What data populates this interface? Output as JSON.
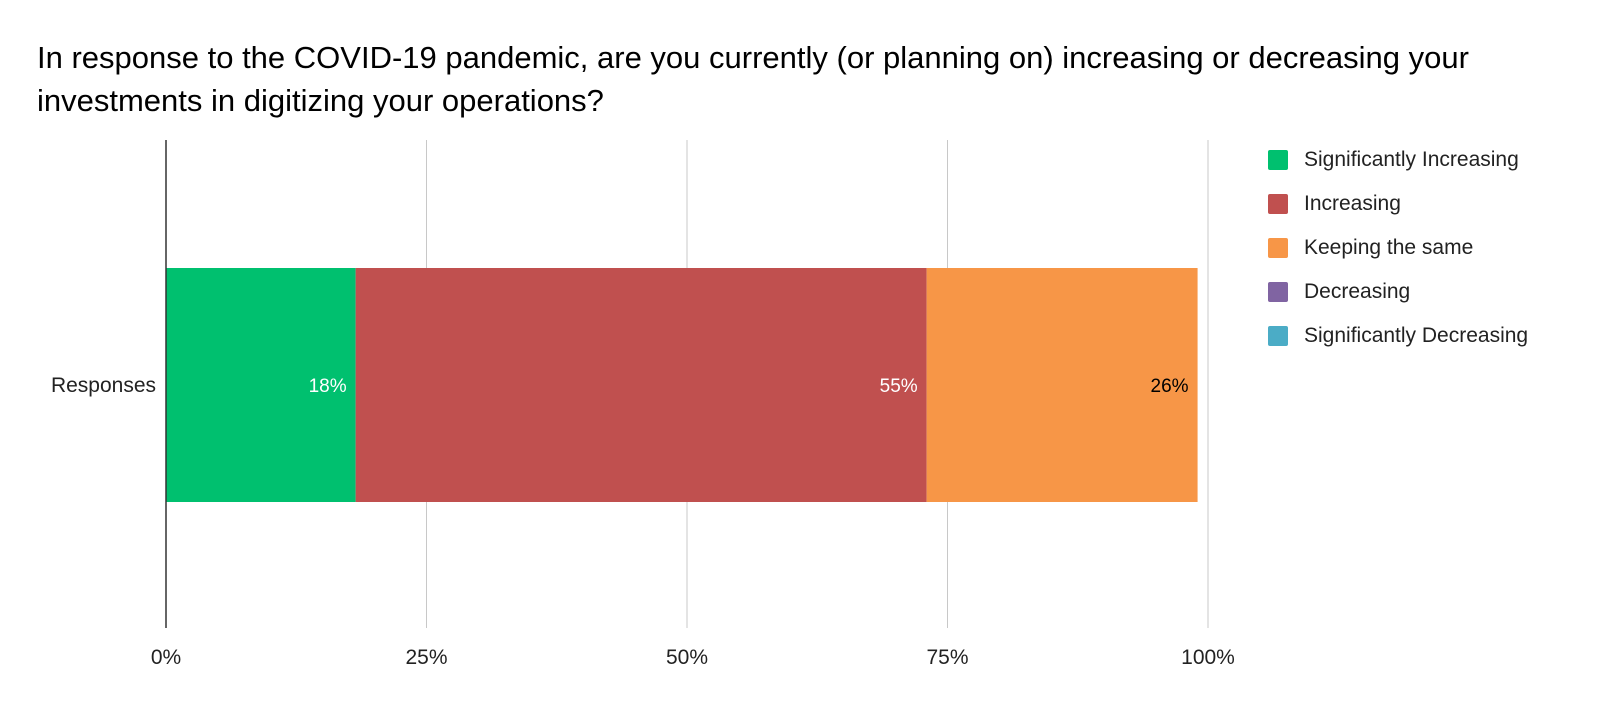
{
  "chart_data": {
    "type": "bar",
    "orientation": "horizontal",
    "stacked": true,
    "title": "In response to the COVID-19 pandemic, are you currently (or planning on) increasing or decreasing your investments in digitizing your operations?",
    "categories": [
      "Responses"
    ],
    "xlim": [
      0,
      100
    ],
    "x_ticks": [
      "0%",
      "25%",
      "50%",
      "75%",
      "100%"
    ],
    "grid": true,
    "legend_position": "right",
    "series": [
      {
        "name": "Significantly Increasing",
        "values": [
          18.2
        ],
        "label": "18%",
        "color": "#00c06f",
        "label_color": "#ffffff"
      },
      {
        "name": "Increasing",
        "values": [
          54.8
        ],
        "label": "55%",
        "color": "#c0504f",
        "label_color": "#ffffff"
      },
      {
        "name": "Keeping the same",
        "values": [
          26.0
        ],
        "label": "26%",
        "color": "#f79647",
        "label_color": "#000000"
      },
      {
        "name": "Decreasing",
        "values": [
          0
        ],
        "label": "",
        "color": "#8064a2",
        "label_color": "#ffffff"
      },
      {
        "name": "Significantly Decreasing",
        "values": [
          0
        ],
        "label": "",
        "color": "#4bacc6",
        "label_color": "#ffffff"
      }
    ]
  }
}
